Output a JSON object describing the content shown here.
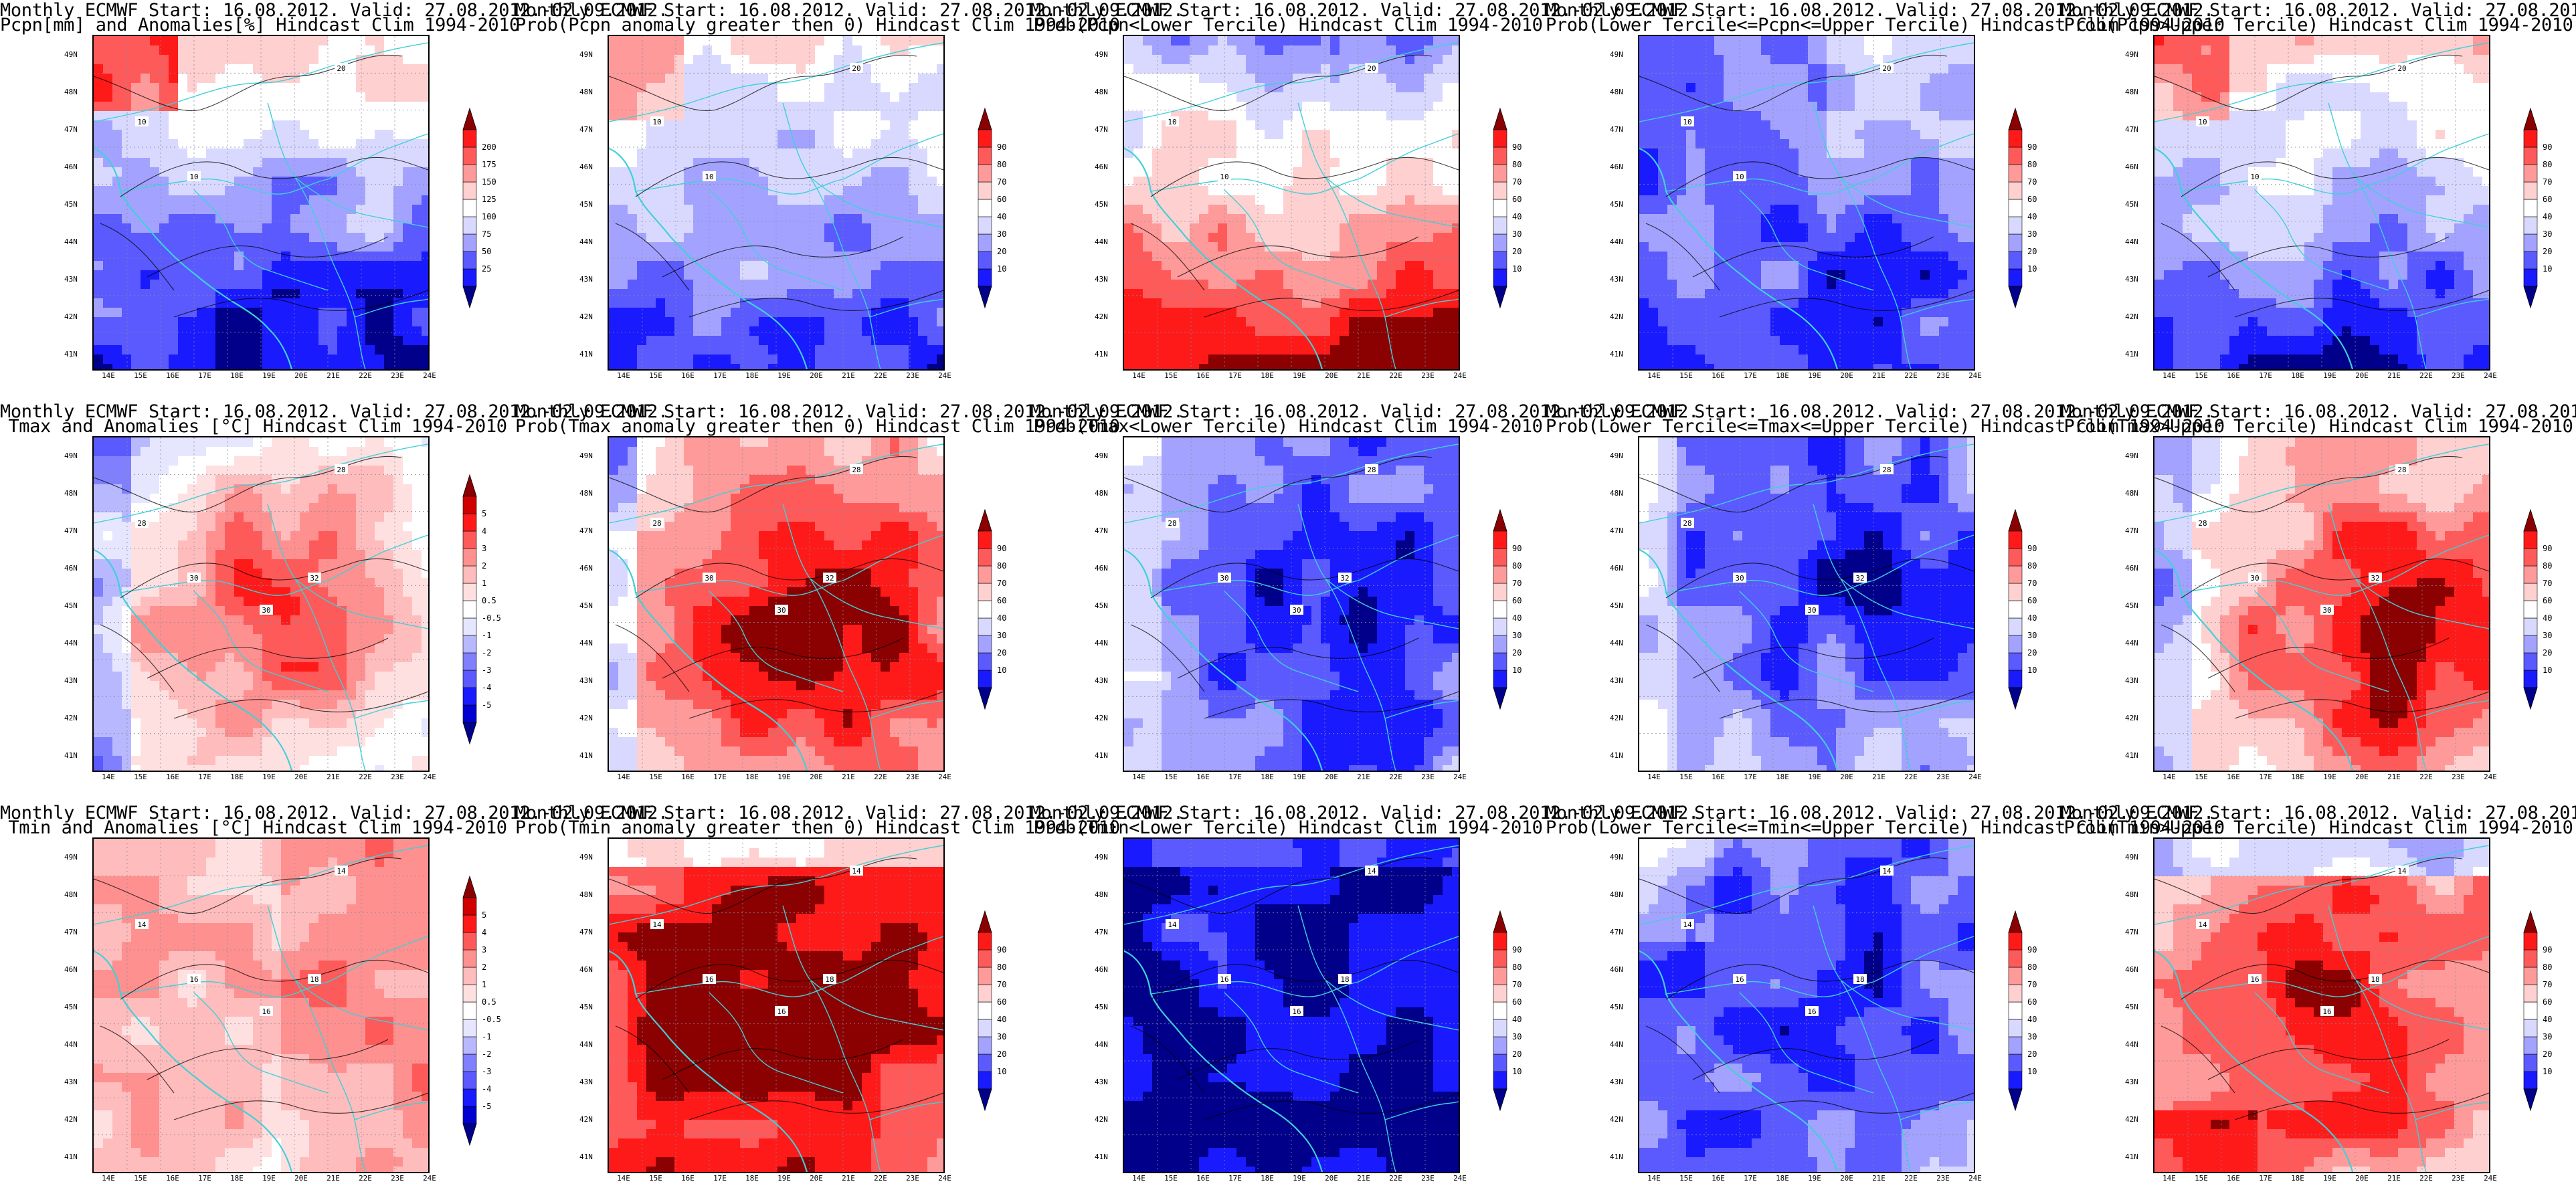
{
  "common_title": "Monthly ECMWF Start: 16.08.2012. Valid: 27.08.2012.-02.09.2012.",
  "panels": [
    {
      "subtitle": "Pcpn[mm] and Anomalies[%] Hindcast Clim 1994-2010",
      "scale": "anom_pcpn",
      "pattern": "pcpn_anom",
      "contours": [
        "20",
        "10",
        "10"
      ]
    },
    {
      "subtitle": "Prob(Pcpn anomaly greater then 0) Hindcast Clim 1994-2010",
      "scale": "prob",
      "pattern": "pcpn_prob_pos",
      "contours": [
        "20",
        "10",
        "10"
      ]
    },
    {
      "subtitle": "Prob(Pcpn<Lower Tercile) Hindcast Clim 1994-2010",
      "scale": "prob",
      "pattern": "pcpn_lower",
      "contours": [
        "20",
        "10",
        "10"
      ]
    },
    {
      "subtitle": "Prob(Lower Tercile<=Pcpn<=Upper Tercile) Hindcast Clim 1994-2010",
      "scale": "prob",
      "pattern": "pcpn_middle",
      "contours": [
        "20",
        "10",
        "10"
      ]
    },
    {
      "subtitle": "Prob(Pcpn>Upper Tercile) Hindcast Clim 1994-2010",
      "scale": "prob",
      "pattern": "pcpn_upper",
      "contours": [
        "20",
        "10",
        "10"
      ]
    },
    {
      "subtitle": "Tmax and Anomalies [°C] Hindcast Clim 1994-2010",
      "scale": "anom_temp",
      "pattern": "tmax_anom",
      "contours": [
        "28",
        "28",
        "30",
        "32",
        "30"
      ]
    },
    {
      "subtitle": "Prob(Tmax anomaly greater then 0) Hindcast Clim 1994-2010",
      "scale": "prob",
      "pattern": "tmax_prob_pos",
      "contours": [
        "28",
        "28",
        "30",
        "32",
        "30"
      ]
    },
    {
      "subtitle": "Prob(Tmax<Lower Tercile) Hindcast Clim 1994-2010",
      "scale": "prob",
      "pattern": "tmax_lower",
      "contours": [
        "28",
        "28",
        "30",
        "32",
        "30"
      ]
    },
    {
      "subtitle": "Prob(Lower Tercile<=Tmax<=Upper Tercile) Hindcast Clim 1994-2010",
      "scale": "prob",
      "pattern": "tmax_middle",
      "contours": [
        "28",
        "28",
        "30",
        "32",
        "30"
      ]
    },
    {
      "subtitle": "Prob(Tmax>Upper Tercile) Hindcast Clim 1994-2010",
      "scale": "prob",
      "pattern": "tmax_upper",
      "contours": [
        "28",
        "28",
        "30",
        "32",
        "30"
      ]
    },
    {
      "subtitle": "Tmin and Anomalies [°C] Hindcast Clim 1994-2010",
      "scale": "anom_temp",
      "pattern": "tmin_anom",
      "contours": [
        "14",
        "14",
        "16",
        "18",
        "16"
      ]
    },
    {
      "subtitle": "Prob(Tmin anomaly greater then 0) Hindcast Clim 1994-2010",
      "scale": "prob",
      "pattern": "tmin_prob_pos",
      "contours": [
        "14",
        "14",
        "16",
        "18",
        "16"
      ]
    },
    {
      "subtitle": "Prob(Tmin<Lower Tercile) Hindcast Clim 1994-2010",
      "scale": "prob",
      "pattern": "tmin_lower",
      "contours": [
        "14",
        "14",
        "16",
        "18",
        "16"
      ]
    },
    {
      "subtitle": "Prob(Lower Tercile<=Tmin<=Upper Tercile) Hindcast Clim 1994-2010",
      "scale": "prob",
      "pattern": "tmin_middle",
      "contours": [
        "14",
        "14",
        "16",
        "18",
        "16"
      ]
    },
    {
      "subtitle": "Prob(Tmin>Upper Tercile) Hindcast Clim 1994-2010",
      "scale": "prob",
      "pattern": "tmin_upper",
      "contours": [
        "14",
        "14",
        "16",
        "18",
        "16"
      ]
    }
  ],
  "lat_labels": [
    "49N",
    "48N",
    "47N",
    "46N",
    "45N",
    "44N",
    "43N",
    "42N",
    "41N"
  ],
  "lon_labels": [
    "14E",
    "15E",
    "16E",
    "17E",
    "18E",
    "19E",
    "20E",
    "21E",
    "22E",
    "23E",
    "24E"
  ],
  "scales": {
    "prob": {
      "labels": [
        "10",
        "20",
        "30",
        "40",
        "60",
        "70",
        "80",
        "90"
      ],
      "colors": [
        "#00008b",
        "#1a1aff",
        "#5a5aff",
        "#a3a3ff",
        "#d9d9ff",
        "#ffffff",
        "#ffd0d0",
        "#ff9a9a",
        "#ff5a5a",
        "#ff1a1a",
        "#8b0000"
      ]
    },
    "anom_pcpn": {
      "labels": [
        "25",
        "50",
        "75",
        "100",
        "125",
        "150",
        "175",
        "200"
      ],
      "colors": [
        "#00008b",
        "#1a1aff",
        "#5a5aff",
        "#a3a3ff",
        "#d9d9ff",
        "#ffffff",
        "#ffd0d0",
        "#ff9a9a",
        "#ff5a5a",
        "#ff1a1a",
        "#8b0000"
      ]
    },
    "anom_temp": {
      "labels": [
        "-5",
        "-4",
        "-3",
        "-2",
        "-1",
        "-0.5",
        "0.5",
        "1",
        "2",
        "3",
        "4",
        "5"
      ],
      "colors": [
        "#00008b",
        "#0000d0",
        "#1a1aff",
        "#5a5aff",
        "#8080ff",
        "#b8b8ff",
        "#e6e6ff",
        "#ffffff",
        "#ffe0e0",
        "#ffbcbc",
        "#ff9090",
        "#ff5a5a",
        "#ff1a1a",
        "#d00000",
        "#8b0000"
      ]
    }
  },
  "colors": {
    "coastline": "#3fd0d8",
    "contour": "#000000",
    "grid": "#8a8aa0"
  }
}
